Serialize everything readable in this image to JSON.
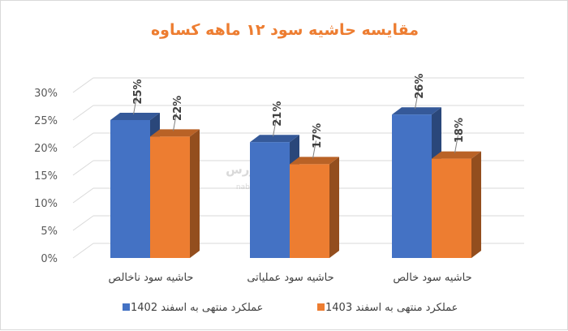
{
  "chart_data": {
    "type": "bar",
    "title": "مقایسه حاشیه سود ۱۲ ماهه کساوه",
    "categories": [
      "حاشیه سود ناخالص",
      "حاشیه سود عملیاتی",
      "حاشیه سود خالص"
    ],
    "series": [
      {
        "name": "عملکرد منتهی به اسفند 1402",
        "values": [
          25,
          21,
          26
        ],
        "color": "#4472C4"
      },
      {
        "name": "عملکرد منتهی به اسفند 1403",
        "values": [
          22,
          17,
          18
        ],
        "color": "#ED7D31"
      }
    ],
    "data_labels": [
      [
        "25%",
        "21%",
        "26%"
      ],
      [
        "22%",
        "17%",
        "18%"
      ]
    ],
    "yticks": [
      "0%",
      "5%",
      "10%",
      "15%",
      "20%",
      "25%",
      "30%"
    ],
    "ylim": [
      0,
      30
    ],
    "grid": true,
    "three_d": true,
    "legend_position": "bottom",
    "title_color": "#ED7D31"
  },
  "watermark": {
    "logo_text": "نبض بورس",
    "url_text": "nabzebourse.com"
  }
}
